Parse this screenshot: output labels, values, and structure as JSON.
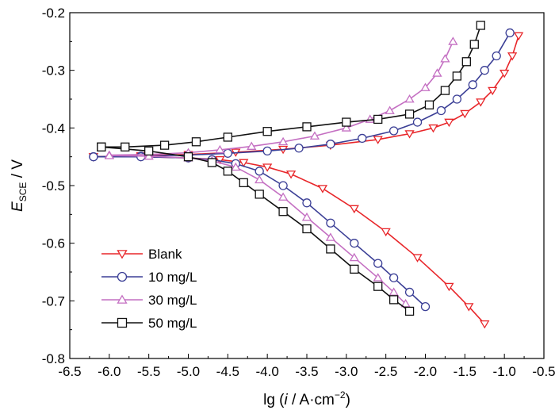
{
  "chart_data": {
    "type": "line",
    "title": "",
    "xlabel": {
      "prefix": "lg (",
      "italic": "i",
      "middle": " / A·cm",
      "sup": "−2",
      "suffix": ")"
    },
    "ylabel": {
      "main": "E",
      "sub": "SCE",
      "unit": " / V"
    },
    "xlim": [
      -6.5,
      -0.5
    ],
    "ylim": [
      -0.8,
      -0.2
    ],
    "xticks": [
      -6.5,
      -6.0,
      -5.5,
      -5.0,
      -4.5,
      -4.0,
      -3.5,
      -3.0,
      -2.5,
      -2.0,
      -1.5,
      -1.0,
      -0.5
    ],
    "xtick_labels": [
      "-6.5",
      "-6.0",
      "-5.5",
      "-5.0",
      "-4.5",
      "-4.0",
      "-3.5",
      "-3.0",
      "-2.5",
      "-2.0",
      "-1.5",
      "-1.0",
      "-0.5"
    ],
    "yticks": [
      -0.8,
      -0.7,
      -0.6,
      -0.5,
      -0.4,
      -0.3,
      -0.2
    ],
    "ytick_labels": [
      "-0.8",
      "-0.7",
      "-0.6",
      "-0.5",
      "-0.4",
      "-0.3",
      "-0.2"
    ],
    "grid": false,
    "legend_position": "bottom-left",
    "series": [
      {
        "name": "Blank",
        "color": "#e8262a",
        "marker": "triangle-down",
        "anodic": {
          "x": [
            -6.2,
            -5.6,
            -5.0,
            -4.4,
            -3.8,
            -3.2,
            -2.6,
            -2.2,
            -1.9,
            -1.7,
            -1.5,
            -1.3,
            -1.15,
            -1.0,
            -0.9,
            -0.82
          ],
          "y": [
            -0.45,
            -0.448,
            -0.446,
            -0.442,
            -0.437,
            -0.43,
            -0.42,
            -0.41,
            -0.4,
            -0.39,
            -0.375,
            -0.355,
            -0.335,
            -0.305,
            -0.275,
            -0.24
          ]
        },
        "cathodic": {
          "x": [
            -6.2,
            -5.6,
            -5.0,
            -4.6,
            -4.3,
            -4.0,
            -3.7,
            -3.3,
            -2.9,
            -2.5,
            -2.1,
            -1.7,
            -1.45,
            -1.25
          ],
          "y": [
            -0.45,
            -0.45,
            -0.452,
            -0.455,
            -0.46,
            -0.468,
            -0.48,
            -0.505,
            -0.54,
            -0.58,
            -0.625,
            -0.675,
            -0.71,
            -0.74
          ]
        }
      },
      {
        "name": "10 mg/L",
        "color": "#3b3f96",
        "marker": "circle",
        "anodic": {
          "x": [
            -6.2,
            -5.6,
            -5.0,
            -4.5,
            -4.0,
            -3.6,
            -3.2,
            -2.8,
            -2.4,
            -2.1,
            -1.8,
            -1.6,
            -1.4,
            -1.25,
            -1.1,
            -0.93
          ],
          "y": [
            -0.45,
            -0.449,
            -0.447,
            -0.444,
            -0.44,
            -0.435,
            -0.428,
            -0.418,
            -0.405,
            -0.39,
            -0.37,
            -0.35,
            -0.325,
            -0.3,
            -0.275,
            -0.235
          ]
        },
        "cathodic": {
          "x": [
            -6.2,
            -5.6,
            -5.0,
            -4.7,
            -4.4,
            -4.1,
            -3.8,
            -3.5,
            -3.2,
            -2.9,
            -2.6,
            -2.4,
            -2.2,
            -2.0
          ],
          "y": [
            -0.45,
            -0.45,
            -0.452,
            -0.455,
            -0.462,
            -0.475,
            -0.5,
            -0.53,
            -0.565,
            -0.6,
            -0.635,
            -0.66,
            -0.685,
            -0.71
          ]
        }
      },
      {
        "name": "30 mg/L",
        "color": "#c46fc2",
        "marker": "triangle-up",
        "anodic": {
          "x": [
            -6.0,
            -5.5,
            -5.0,
            -4.6,
            -4.2,
            -3.8,
            -3.4,
            -3.0,
            -2.7,
            -2.45,
            -2.2,
            -2.0,
            -1.85,
            -1.75,
            -1.65
          ],
          "y": [
            -0.447,
            -0.446,
            -0.443,
            -0.438,
            -0.432,
            -0.424,
            -0.414,
            -0.4,
            -0.385,
            -0.37,
            -0.35,
            -0.33,
            -0.305,
            -0.28,
            -0.25
          ]
        },
        "cathodic": {
          "x": [
            -6.0,
            -5.5,
            -5.0,
            -4.7,
            -4.4,
            -4.1,
            -3.8,
            -3.5,
            -3.2,
            -2.9,
            -2.6,
            -2.4,
            -2.25
          ],
          "y": [
            -0.448,
            -0.449,
            -0.452,
            -0.457,
            -0.468,
            -0.49,
            -0.52,
            -0.555,
            -0.59,
            -0.625,
            -0.66,
            -0.685,
            -0.705
          ]
        }
      },
      {
        "name": "50 mg/L",
        "color": "#111111",
        "marker": "square",
        "anodic": {
          "x": [
            -6.1,
            -5.8,
            -5.3,
            -4.9,
            -4.5,
            -4.0,
            -3.5,
            -3.0,
            -2.6,
            -2.2,
            -1.95,
            -1.75,
            -1.6,
            -1.48,
            -1.38,
            -1.3
          ],
          "y": [
            -0.433,
            -0.433,
            -0.43,
            -0.424,
            -0.416,
            -0.406,
            -0.398,
            -0.39,
            -0.385,
            -0.376,
            -0.36,
            -0.335,
            -0.31,
            -0.285,
            -0.255,
            -0.222
          ]
        },
        "cathodic": {
          "x": [
            -6.1,
            -5.5,
            -5.0,
            -4.7,
            -4.5,
            -4.3,
            -4.1,
            -3.8,
            -3.5,
            -3.2,
            -2.9,
            -2.6,
            -2.4,
            -2.2
          ],
          "y": [
            -0.433,
            -0.44,
            -0.45,
            -0.46,
            -0.475,
            -0.495,
            -0.515,
            -0.545,
            -0.575,
            -0.61,
            -0.645,
            -0.675,
            -0.698,
            -0.718
          ]
        }
      }
    ]
  }
}
